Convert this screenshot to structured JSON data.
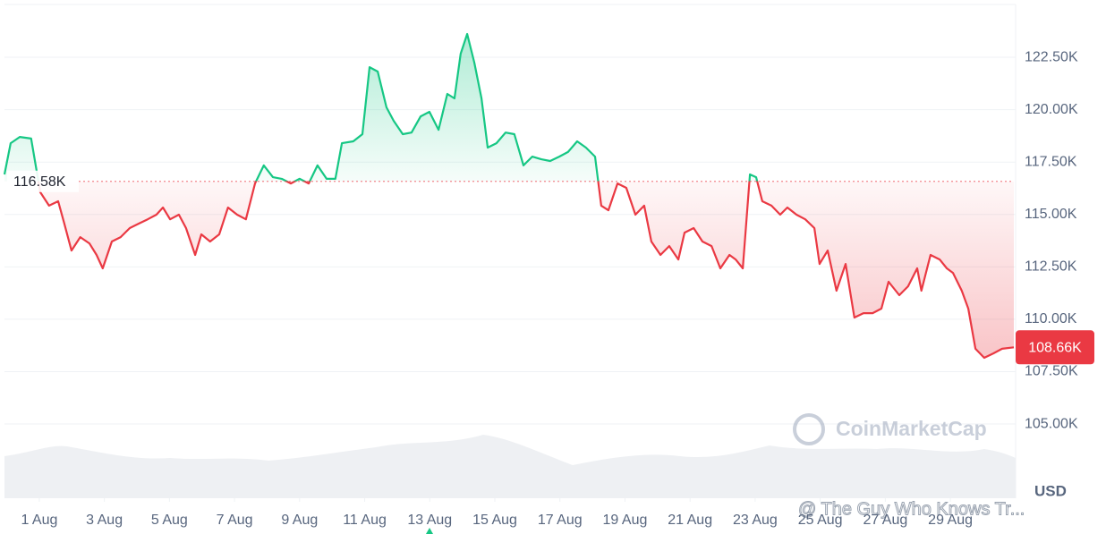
{
  "chart_data": {
    "type": "line",
    "x": [
      -0.07,
      0.12,
      0.4,
      0.75,
      0.89,
      1.03,
      1.3,
      1.58,
      1.77,
      1.99,
      2.26,
      2.54,
      2.76,
      2.95,
      3.23,
      3.5,
      3.78,
      4.05,
      4.33,
      4.6,
      4.8,
      5.02,
      5.29,
      5.51,
      5.79,
      5.98,
      6.25,
      6.53,
      6.8,
      7.08,
      7.35,
      7.63,
      7.9,
      8.18,
      8.45,
      8.73,
      9.0,
      9.28,
      9.55,
      9.83,
      10.1,
      10.3,
      10.65,
      10.93,
      11.15,
      11.4,
      11.67,
      11.89,
      12.17,
      12.44,
      12.72,
      12.99,
      13.27,
      13.54,
      13.76,
      13.95,
      14.15,
      14.37,
      14.59,
      14.78,
      15.05,
      15.33,
      15.6,
      15.88,
      16.15,
      16.43,
      16.7,
      16.98,
      17.25,
      17.53,
      17.8,
      18.08,
      18.27,
      18.49,
      18.77,
      19.04,
      19.32,
      19.59,
      19.81,
      20.09,
      20.36,
      20.64,
      20.83,
      21.11,
      21.38,
      21.66,
      21.93,
      22.21,
      22.4,
      22.62,
      22.84,
      23.03,
      23.22,
      23.5,
      23.77,
      23.99,
      24.27,
      24.54,
      24.82,
      24.98,
      25.23,
      25.5,
      25.78,
      26.05,
      26.33,
      26.61,
      26.88,
      27.1,
      27.43,
      27.7,
      27.98,
      28.11,
      28.39,
      28.67,
      28.89,
      29.08,
      29.35,
      29.55,
      29.77,
      30.04,
      30.32,
      30.59,
      30.95
    ],
    "values": [
      116910,
      118400,
      118700,
      118620,
      117340,
      116060,
      115420,
      115630,
      114560,
      113280,
      113920,
      113620,
      113070,
      112430,
      113710,
      113920,
      114350,
      114560,
      114770,
      114990,
      115330,
      114770,
      114990,
      114350,
      113070,
      114050,
      113710,
      114050,
      115330,
      114990,
      114770,
      116480,
      117340,
      116780,
      116700,
      116480,
      116700,
      116480,
      117340,
      116700,
      116700,
      118400,
      118490,
      118830,
      122030,
      121820,
      120110,
      119470,
      118830,
      118910,
      119680,
      119900,
      119040,
      120750,
      120540,
      122670,
      123610,
      122240,
      120540,
      118190,
      118400,
      118910,
      118830,
      117340,
      117760,
      117630,
      117550,
      117760,
      117980,
      118490,
      118190,
      117760,
      115420,
      115200,
      116480,
      116270,
      114990,
      115420,
      113710,
      113070,
      113490,
      112850,
      114130,
      114350,
      113710,
      113490,
      112430,
      113070,
      112850,
      112430,
      116910,
      116780,
      115630,
      115420,
      114990,
      115330,
      114990,
      114770,
      114350,
      112640,
      113280,
      111360,
      112640,
      110080,
      110290,
      110290,
      110510,
      111790,
      111150,
      111570,
      112430,
      111360,
      113070,
      112850,
      112430,
      112210,
      111360,
      110510,
      108590,
      108160,
      108370,
      108590,
      108660
    ],
    "up_color": "#16c784",
    "down_color": "#ea3943",
    "reference": {
      "value": 116580,
      "label": "116.58K"
    },
    "current": {
      "value": 108660,
      "label": "108.66K"
    },
    "xlim": [
      -0.07,
      30.95
    ],
    "xticks": [
      {
        "value": 1,
        "label": "1 Aug"
      },
      {
        "value": 3,
        "label": "3 Aug"
      },
      {
        "value": 5,
        "label": "5 Aug"
      },
      {
        "value": 7,
        "label": "7 Aug"
      },
      {
        "value": 9,
        "label": "9 Aug"
      },
      {
        "value": 11,
        "label": "11 Aug"
      },
      {
        "value": 13,
        "label": "13 Aug"
      },
      {
        "value": 15,
        "label": "15 Aug"
      },
      {
        "value": 17,
        "label": "17 Aug"
      },
      {
        "value": 19,
        "label": "19 Aug"
      },
      {
        "value": 21,
        "label": "21 Aug"
      },
      {
        "value": 23,
        "label": "23 Aug"
      },
      {
        "value": 25,
        "label": "25 Aug"
      },
      {
        "value": 27,
        "label": "27 Aug"
      },
      {
        "value": 29,
        "label": "29 Aug"
      }
    ],
    "ylim": [
      101460,
      125020
    ],
    "yticks": [
      {
        "value": 105000,
        "label": "105.00K"
      },
      {
        "value": 107500,
        "label": "107.50K"
      },
      {
        "value": 110000,
        "label": "110.00K"
      },
      {
        "value": 112500,
        "label": "112.50K"
      },
      {
        "value": 115000,
        "label": "115.00K"
      },
      {
        "value": 117500,
        "label": "117.50K"
      },
      {
        "value": 120000,
        "label": "120.00K"
      },
      {
        "value": 122500,
        "label": "122.50K"
      }
    ],
    "grid": true,
    "unit": "USD",
    "watermark": "CoinMarketCap"
  },
  "overlay": "@ The Guy Who Knows Tr..."
}
